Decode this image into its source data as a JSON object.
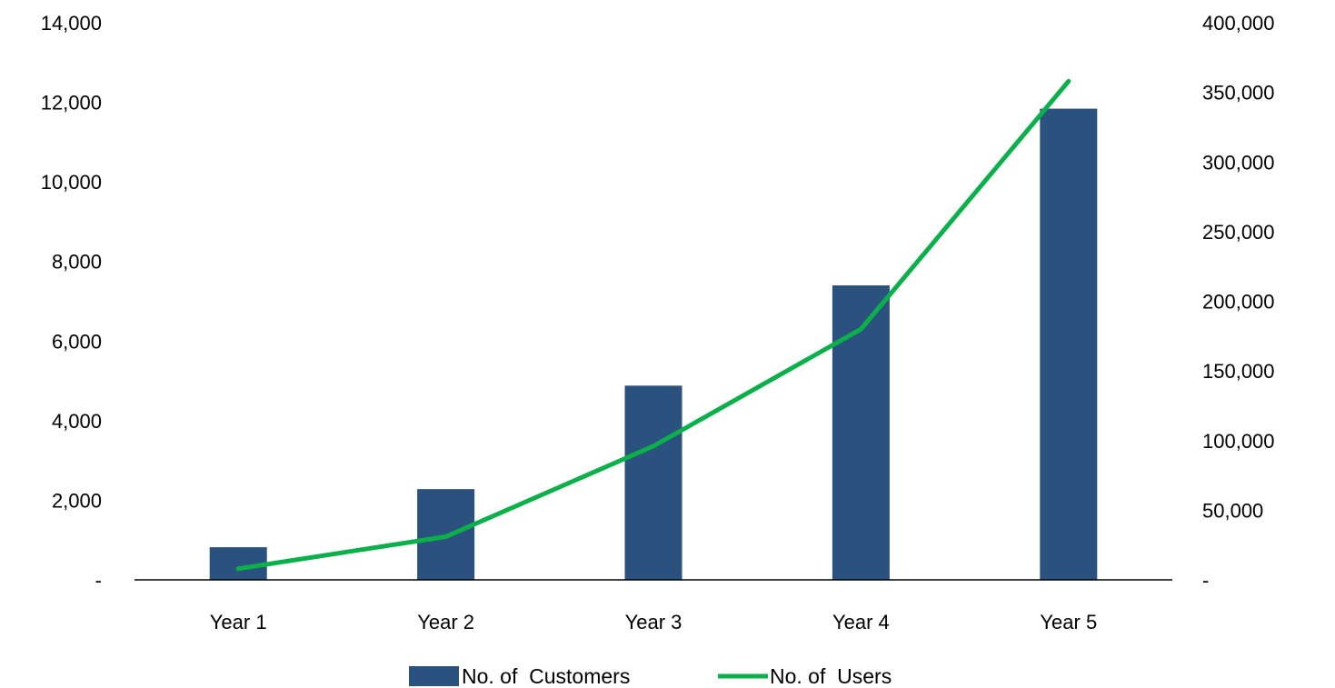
{
  "chart_data": {
    "type": "bar",
    "categories": [
      "Year 1",
      "Year 2",
      "Year 3",
      "Year 4",
      "Year 5"
    ],
    "series": [
      {
        "name": "No. of  Customers",
        "type": "bar",
        "axis": "left",
        "color": "#2b527f",
        "values": [
          820,
          2280,
          4880,
          7400,
          11840
        ]
      },
      {
        "name": "No. of  Users",
        "type": "line",
        "axis": "right",
        "color": "#0bb04b",
        "values": [
          8000,
          31000,
          96000,
          180000,
          358000
        ]
      }
    ],
    "y_left": {
      "min": 0,
      "max": 14000,
      "ticks": [
        0,
        2000,
        4000,
        6000,
        8000,
        10000,
        12000,
        14000
      ],
      "tick_labels": [
        "-",
        "2,000",
        "4,000",
        "6,000",
        "8,000",
        "10,000",
        "12,000",
        "14,000"
      ]
    },
    "y_right": {
      "min": 0,
      "max": 400000,
      "ticks": [
        0,
        50000,
        100000,
        150000,
        200000,
        250000,
        300000,
        350000,
        400000
      ],
      "tick_labels": [
        "-",
        "50,000",
        "100,000",
        "150,000",
        "200,000",
        "250,000",
        "300,000",
        "350,000",
        "400,000"
      ]
    },
    "grid": false,
    "legend_position": "bottom"
  }
}
